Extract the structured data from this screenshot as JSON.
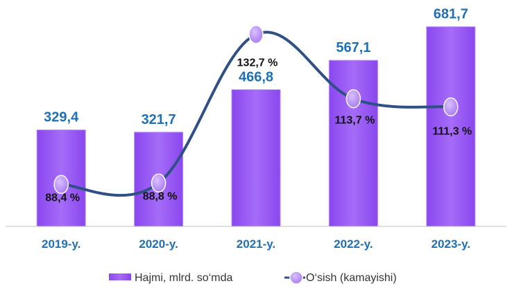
{
  "colors": {
    "bar": "#9a59f5",
    "bar_edge": "#b98cff",
    "line": "#2f4f86",
    "marker": "#b68af5",
    "marker_edge": "#ffffff",
    "bar_label": "#1f6fb6",
    "category_label": "#1f6fb6",
    "axis": "#bfbfbf"
  },
  "chart_data": {
    "type": "bar",
    "categories": [
      "2019-y.",
      "2020-y.",
      "2021-y.",
      "2022-y.",
      "2023-y."
    ],
    "series": [
      {
        "name": "Hajmi, mlrd. so‘mda",
        "type": "bar",
        "values": [
          329.4,
          321.7,
          466.8,
          567.1,
          681.7
        ],
        "labels": [
          "329,4",
          "321,7",
          "466,8",
          "567,1",
          "681,7"
        ]
      },
      {
        "name": "O‘sish (kamayishi)",
        "type": "line",
        "values": [
          88.4,
          88.8,
          132.7,
          113.7,
          111.3
        ],
        "labels": [
          "88,4 %",
          "88,8 %",
          "132,7 %",
          "113,7 %",
          "111,3 %"
        ]
      }
    ],
    "ylim": [
      0,
      740
    ],
    "y2lim": [
      76,
      140
    ],
    "legend_position": "bottom",
    "grid": false
  }
}
